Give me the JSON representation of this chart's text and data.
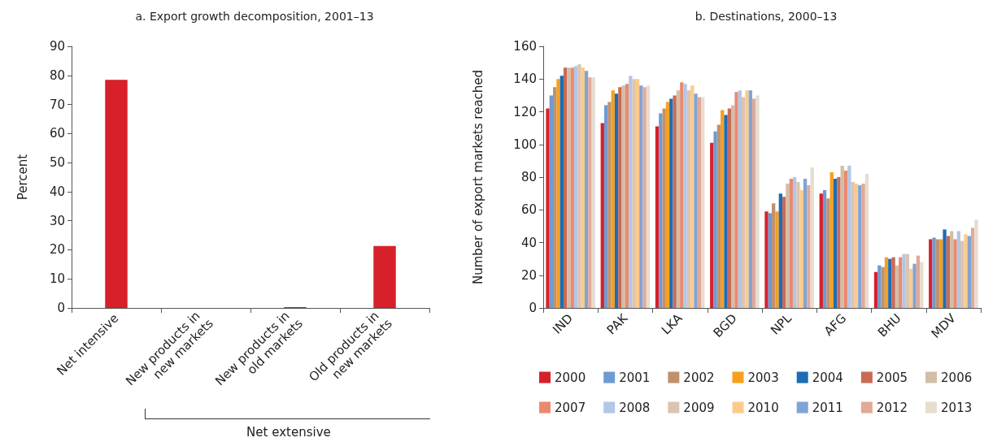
{
  "chart_data": [
    {
      "type": "bar",
      "title": "a. Export growth decomposition, 2001–13",
      "ylabel": "Percent",
      "categories": [
        "Net intensive",
        "New products in new markets",
        "New products in old markets",
        "Old products in new markets"
      ],
      "values": [
        78.5,
        0,
        0.3,
        21.3
      ],
      "color": "#d7202a",
      "ylim": [
        0,
        90
      ],
      "yticks": [
        0,
        10,
        20,
        30,
        40,
        50,
        60,
        70,
        80,
        90
      ],
      "grid": false,
      "legend": false,
      "annotations": [
        "Net extensive"
      ]
    },
    {
      "type": "bar",
      "title": "b. Destinations, 2000–13",
      "ylabel": "Number of export markets reached",
      "categories": [
        "IND",
        "PAK",
        "LKA",
        "BGD",
        "NPL",
        "AFG",
        "BHU",
        "MDV"
      ],
      "ylim": [
        0,
        160
      ],
      "yticks": [
        0,
        20,
        40,
        60,
        80,
        100,
        120,
        140,
        160
      ],
      "grid": false,
      "legend": "bottom",
      "series": [
        {
          "name": "2000",
          "color": "#d7202a",
          "values": [
            122,
            113,
            111,
            101,
            59,
            70,
            22,
            42
          ]
        },
        {
          "name": "2001",
          "color": "#6e9bd1",
          "values": [
            130,
            124,
            119,
            108,
            58,
            72,
            26,
            43
          ]
        },
        {
          "name": "2002",
          "color": "#c0916f",
          "values": [
            135,
            126,
            122,
            112,
            64,
            67,
            25,
            42
          ]
        },
        {
          "name": "2003",
          "color": "#f6a01e",
          "values": [
            140,
            133,
            126,
            121,
            59,
            83,
            31,
            42
          ]
        },
        {
          "name": "2004",
          "color": "#1b6db5",
          "values": [
            142,
            131,
            128,
            118,
            70,
            79,
            30,
            48
          ]
        },
        {
          "name": "2005",
          "color": "#c96a56",
          "values": [
            147,
            135,
            130,
            122,
            68,
            80,
            31,
            44
          ]
        },
        {
          "name": "2006",
          "color": "#d2bea6",
          "values": [
            147,
            136,
            133,
            124,
            76,
            87,
            26,
            47
          ]
        },
        {
          "name": "2007",
          "color": "#e98a70",
          "values": [
            147,
            137,
            138,
            132,
            79,
            84,
            31,
            42
          ]
        },
        {
          "name": "2008",
          "color": "#b3c6e5",
          "values": [
            148,
            142,
            137,
            133,
            80,
            87,
            33,
            47
          ]
        },
        {
          "name": "2009",
          "color": "#dcc4b2",
          "values": [
            149,
            140,
            133,
            129,
            77,
            77,
            33,
            41
          ]
        },
        {
          "name": "2010",
          "color": "#fccb8a",
          "values": [
            147,
            140,
            136,
            133,
            72,
            76,
            24,
            45
          ]
        },
        {
          "name": "2011",
          "color": "#80a4d5",
          "values": [
            145,
            136,
            131,
            133,
            79,
            75,
            27,
            44
          ]
        },
        {
          "name": "2012",
          "color": "#e2a997",
          "values": [
            141,
            135,
            129,
            128,
            75,
            76,
            32,
            49
          ]
        },
        {
          "name": "2013",
          "color": "#e6ddd0",
          "values": [
            141,
            136,
            129,
            130,
            86,
            82,
            28,
            54
          ]
        }
      ]
    }
  ]
}
